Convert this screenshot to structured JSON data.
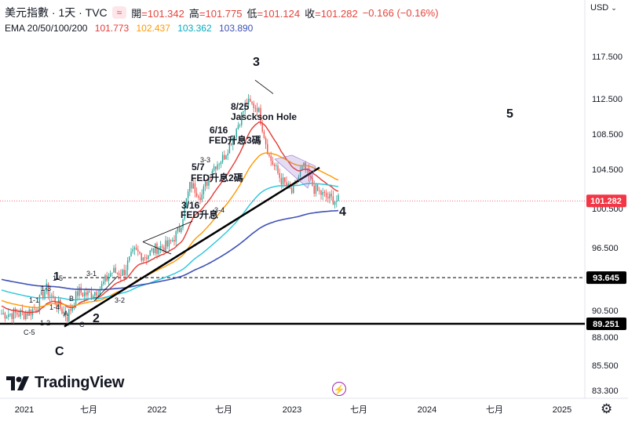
{
  "header": {
    "symbol": "美元指數 · 1天 · TVC",
    "pill": "≈",
    "open_label": "開",
    "open": "=101.342",
    "high_label": "高",
    "high": "=101.775",
    "low_label": "低",
    "low": "=101.124",
    "close_label": "收",
    "close": "=101.282",
    "change": "−0.166 (−0.16%)"
  },
  "ema": {
    "label": "EMA 20/50/100/200",
    "v20": "101.773",
    "v50": "102.437",
    "v100": "103.362",
    "v200": "103.890"
  },
  "currency": {
    "label": "USD",
    "caret": "⌄"
  },
  "brand": {
    "name": "TradingView"
  },
  "colors": {
    "up": "#26a69a",
    "down": "#ef5350",
    "ema20": "#e53935",
    "ema50": "#ff9800",
    "ema100": "#26c6da",
    "ema200": "#3f51b5",
    "line_black": "#000000",
    "price_tag": "#f23645"
  },
  "chart_data": {
    "type": "candlestick",
    "yaxis_ticks": [
      "117.500",
      "112.500",
      "108.500",
      "104.500",
      "100.500",
      "96.500",
      "90.500",
      "88.000",
      "85.500",
      "83.300"
    ],
    "xaxis_ticks": [
      "2021",
      "七月",
      "2022",
      "七月",
      "2023",
      "七月",
      "2024",
      "七月",
      "2025"
    ],
    "price_labels": [
      {
        "value": "101.282",
        "kind": "last"
      },
      {
        "value": "93.645",
        "kind": "level"
      },
      {
        "value": "89.251",
        "kind": "level"
      }
    ],
    "approx_daily_close": [
      [
        "2021-01",
        90.2
      ],
      [
        "2021-02",
        90.6
      ],
      [
        "2021-03",
        92.6
      ],
      [
        "2021-04",
        91.2
      ],
      [
        "2021-05",
        89.9
      ],
      [
        "2021-06",
        92.3
      ],
      [
        "2021-07",
        92.0
      ],
      [
        "2021-08",
        92.6
      ],
      [
        "2021-09",
        94.2
      ],
      [
        "2021-10",
        94.1
      ],
      [
        "2021-11",
        96.1
      ],
      [
        "2021-12",
        95.7
      ],
      [
        "2022-01",
        96.5
      ],
      [
        "2022-02",
        96.7
      ],
      [
        "2022-03",
        98.3
      ],
      [
        "2022-04",
        103.0
      ],
      [
        "2022-05",
        101.8
      ],
      [
        "2022-06",
        104.7
      ],
      [
        "2022-07",
        105.9
      ],
      [
        "2022-08",
        108.7
      ],
      [
        "2022-09",
        112.1
      ],
      [
        "2022-10",
        111.5
      ],
      [
        "2022-11",
        105.9
      ],
      [
        "2022-12",
        103.5
      ],
      [
        "2023-01",
        102.1
      ],
      [
        "2023-02",
        104.9
      ],
      [
        "2023-03",
        102.5
      ],
      [
        "2023-04",
        101.7
      ],
      [
        "2023-05",
        101.3
      ]
    ],
    "annotations": [
      {
        "text": "1",
        "style": "wave"
      },
      {
        "text": "2",
        "style": "wave"
      },
      {
        "text": "3",
        "style": "wave"
      },
      {
        "text": "4",
        "style": "wave"
      },
      {
        "text": "5",
        "style": "wave"
      },
      {
        "text": "C",
        "style": "wave"
      },
      {
        "text": "8/25",
        "style": "note"
      },
      {
        "text": "Jasckson Hole",
        "style": "note"
      },
      {
        "text": "6/16",
        "style": "note"
      },
      {
        "text": "FED升息3碼",
        "style": "note"
      },
      {
        "text": "5/7",
        "style": "note"
      },
      {
        "text": "FED升息2碼",
        "style": "note"
      },
      {
        "text": "3/16",
        "style": "note"
      },
      {
        "text": "FED升息",
        "style": "note"
      },
      {
        "text": "1-5",
        "style": "small"
      },
      {
        "text": "1-3",
        "style": "small"
      },
      {
        "text": "1-1",
        "style": "small"
      },
      {
        "text": "1-4",
        "style": "small"
      },
      {
        "text": "1-2",
        "style": "small"
      },
      {
        "text": "C-5",
        "style": "small"
      },
      {
        "text": "3-1",
        "style": "small"
      },
      {
        "text": "3-2",
        "style": "small"
      },
      {
        "text": "3-3",
        "style": "small"
      },
      {
        "text": "3-4",
        "style": "small"
      },
      {
        "text": "A",
        "style": "small"
      },
      {
        "text": "B",
        "style": "small"
      },
      {
        "text": "C",
        "style": "small"
      }
    ]
  }
}
